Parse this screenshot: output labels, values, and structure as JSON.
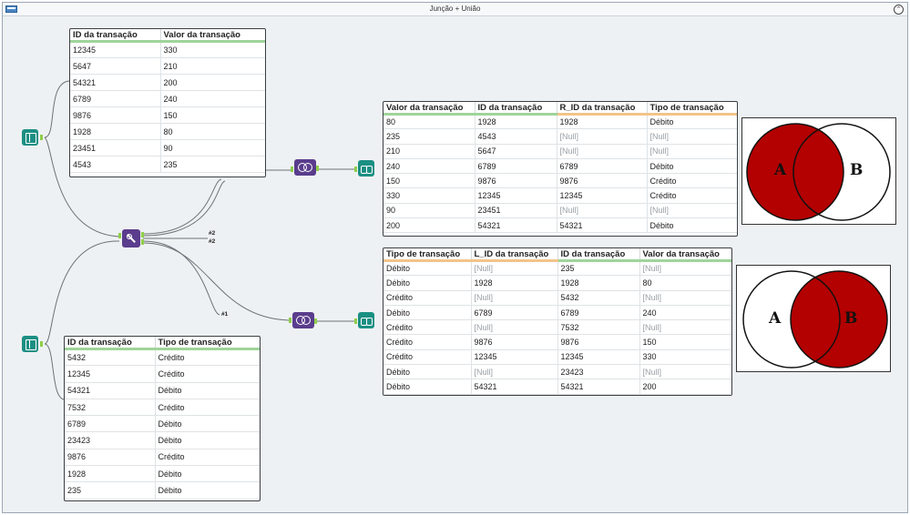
{
  "window": {
    "title": "Junção + União",
    "collapse_glyph": "⌃"
  },
  "colors": {
    "venn_fill": "#b30000",
    "tool_teal": "#1c8f83",
    "tool_purple": "#5a3d8c",
    "anchor_green": "#8fcf4a"
  },
  "icons": {
    "input_top": "book-input-icon",
    "input_bottom": "book-input-icon",
    "join_tool": "join-tool-icon",
    "join_top": "join-tool-icon",
    "join_bottom": "join-tool-icon",
    "browse_top": "binoculars-browse-icon",
    "browse_bottom": "binoculars-browse-icon"
  },
  "badges": {
    "top_a": "#2",
    "top_b": "#2",
    "bottom": "#1"
  },
  "table_left_top": {
    "headers": [
      "ID da transação",
      "Valor da transação"
    ],
    "rows": [
      [
        "12345",
        "330"
      ],
      [
        "5647",
        "210"
      ],
      [
        "54321",
        "200"
      ],
      [
        "6789",
        "240"
      ],
      [
        "9876",
        "150"
      ],
      [
        "1928",
        "80"
      ],
      [
        "23451",
        "90"
      ],
      [
        "4543",
        "235"
      ]
    ]
  },
  "table_left_bottom": {
    "headers": [
      "ID da transação",
      "Tipo de  transação"
    ],
    "rows": [
      [
        "5432",
        "Crédito"
      ],
      [
        "12345",
        "Crédito"
      ],
      [
        "54321",
        "Débito"
      ],
      [
        "7532",
        "Crédito"
      ],
      [
        "6789",
        "Débito"
      ],
      [
        "23423",
        "Débito"
      ],
      [
        "9876",
        "Crédito"
      ],
      [
        "1928",
        "Débito"
      ],
      [
        "235",
        "Débito"
      ]
    ]
  },
  "table_result_top": {
    "headers": [
      "Valor da transação",
      "ID da transação",
      "R_ID da transação",
      "Tipo de transação"
    ],
    "rows": [
      [
        "80",
        "1928",
        "1928",
        "Débito"
      ],
      [
        "235",
        "4543",
        "[Null]",
        "[Null]"
      ],
      [
        "210",
        "5647",
        "[Null]",
        "[Null]"
      ],
      [
        "240",
        "6789",
        "6789",
        "Débito"
      ],
      [
        "150",
        "9876",
        "9876",
        "Crédito"
      ],
      [
        "330",
        "12345",
        "12345",
        "Crédito"
      ],
      [
        "90",
        "23451",
        "[Null]",
        "[Null]"
      ],
      [
        "200",
        "54321",
        "54321",
        "Débito"
      ]
    ]
  },
  "table_result_bottom": {
    "headers": [
      "Tipo de transação",
      "L_ID da transação",
      "ID da transação",
      "Valor da transação"
    ],
    "rows": [
      [
        "Débito",
        "[Null]",
        "235",
        "[Null]"
      ],
      [
        "Débito",
        "1928",
        "1928",
        "80"
      ],
      [
        "Crédito",
        "[Null]",
        "5432",
        "[Null]"
      ],
      [
        "Débito",
        "6789",
        "6789",
        "240"
      ],
      [
        "Crédito",
        "[Null]",
        "7532",
        "[Null]"
      ],
      [
        "Crédito",
        "9876",
        "9876",
        "150"
      ],
      [
        "Crédito",
        "12345",
        "12345",
        "330"
      ],
      [
        "Débito",
        "[Null]",
        "23423",
        "[Null]"
      ],
      [
        "Débito",
        "54321",
        "54321",
        "200"
      ]
    ]
  },
  "venn_top": {
    "label_a": "A",
    "label_b": "B",
    "filled": "A"
  },
  "venn_bottom": {
    "label_a": "A",
    "label_b": "B",
    "filled": "B"
  }
}
